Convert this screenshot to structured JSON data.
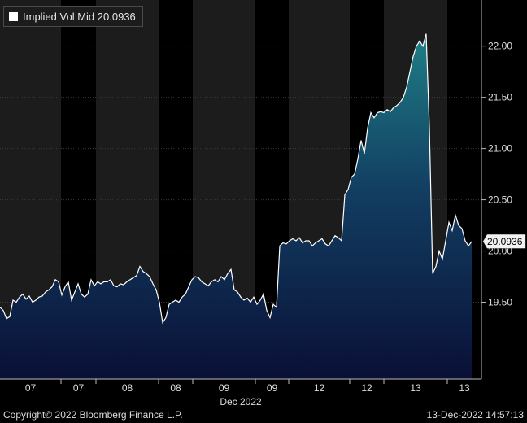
{
  "legend": {
    "label": "Implied Vol Mid",
    "value": "20.0936",
    "swatch_color": "#ffffff"
  },
  "footer": {
    "copyright": "Copyright© 2022 Bloomberg Finance L.P.",
    "timestamp": "13-Dec-2022 14:57:13"
  },
  "chart_data": {
    "type": "area",
    "series": [
      {
        "name": "Implied Vol Mid",
        "last_value": 20.0936
      }
    ],
    "x_tick_labels": [
      "07",
      "07",
      "08",
      "08",
      "09",
      "09",
      "12",
      "12",
      "13",
      "13"
    ],
    "x_month_label": "Dec 2022",
    "y_ticks": [
      19.5,
      20.0,
      20.5,
      21.0,
      21.5,
      22.0
    ],
    "y_tick_labels": [
      "19.50",
      "20.00",
      "20.50",
      "21.00",
      "21.50",
      "22.00"
    ],
    "ylim": [
      18.75,
      22.45
    ],
    "y_axis_position": "right",
    "current_value_label": "20.0936",
    "shaded_sessions": [
      [
        0,
        1
      ],
      [
        2,
        3
      ],
      [
        4,
        5
      ],
      [
        6,
        7
      ],
      [
        8,
        9
      ]
    ],
    "n_points": 146,
    "points": [
      [
        0,
        19.45
      ],
      [
        1,
        19.42
      ],
      [
        2,
        19.34
      ],
      [
        3,
        19.36
      ],
      [
        4,
        19.52
      ],
      [
        5,
        19.5
      ],
      [
        6,
        19.55
      ],
      [
        7,
        19.58
      ],
      [
        8,
        19.53
      ],
      [
        9,
        19.56
      ],
      [
        10,
        19.5
      ],
      [
        11,
        19.52
      ],
      [
        12,
        19.55
      ],
      [
        13,
        19.56
      ],
      [
        14,
        19.6
      ],
      [
        15,
        19.62
      ],
      [
        16,
        19.65
      ],
      [
        17,
        19.72
      ],
      [
        18,
        19.7
      ],
      [
        19,
        19.57
      ],
      [
        20,
        19.65
      ],
      [
        21,
        19.7
      ],
      [
        22,
        19.52
      ],
      [
        23,
        19.6
      ],
      [
        24,
        19.68
      ],
      [
        25,
        19.58
      ],
      [
        26,
        19.55
      ],
      [
        27,
        19.58
      ],
      [
        28,
        19.72
      ],
      [
        29,
        19.66
      ],
      [
        30,
        19.7
      ],
      [
        31,
        19.68
      ],
      [
        32,
        19.7
      ],
      [
        33,
        19.7
      ],
      [
        34,
        19.72
      ],
      [
        35,
        19.66
      ],
      [
        36,
        19.65
      ],
      [
        37,
        19.68
      ],
      [
        38,
        19.67
      ],
      [
        39,
        19.7
      ],
      [
        40,
        19.72
      ],
      [
        41,
        19.74
      ],
      [
        42,
        19.76
      ],
      [
        43,
        19.85
      ],
      [
        44,
        19.8
      ],
      [
        45,
        19.78
      ],
      [
        46,
        19.75
      ],
      [
        47,
        19.68
      ],
      [
        48,
        19.62
      ],
      [
        49,
        19.5
      ],
      [
        50,
        19.3
      ],
      [
        51,
        19.35
      ],
      [
        52,
        19.48
      ],
      [
        53,
        19.5
      ],
      [
        54,
        19.52
      ],
      [
        55,
        19.5
      ],
      [
        56,
        19.55
      ],
      [
        57,
        19.58
      ],
      [
        58,
        19.65
      ],
      [
        59,
        19.72
      ],
      [
        60,
        19.75
      ],
      [
        61,
        19.74
      ],
      [
        62,
        19.7
      ],
      [
        63,
        19.68
      ],
      [
        64,
        19.66
      ],
      [
        65,
        19.7
      ],
      [
        66,
        19.72
      ],
      [
        67,
        19.7
      ],
      [
        68,
        19.75
      ],
      [
        69,
        19.72
      ],
      [
        70,
        19.78
      ],
      [
        71,
        19.82
      ],
      [
        72,
        19.62
      ],
      [
        73,
        19.6
      ],
      [
        74,
        19.55
      ],
      [
        75,
        19.52
      ],
      [
        76,
        19.54
      ],
      [
        77,
        19.5
      ],
      [
        78,
        19.55
      ],
      [
        79,
        19.48
      ],
      [
        80,
        19.52
      ],
      [
        81,
        19.58
      ],
      [
        82,
        19.42
      ],
      [
        83,
        19.35
      ],
      [
        84,
        19.48
      ],
      [
        85,
        19.45
      ],
      [
        86,
        20.05
      ],
      [
        87,
        20.08
      ],
      [
        88,
        20.07
      ],
      [
        89,
        20.1
      ],
      [
        90,
        20.12
      ],
      [
        91,
        20.1
      ],
      [
        92,
        20.13
      ],
      [
        93,
        20.08
      ],
      [
        94,
        20.1
      ],
      [
        95,
        20.1
      ],
      [
        96,
        20.05
      ],
      [
        97,
        20.08
      ],
      [
        98,
        20.1
      ],
      [
        99,
        20.12
      ],
      [
        100,
        20.07
      ],
      [
        101,
        20.05
      ],
      [
        102,
        20.1
      ],
      [
        103,
        20.15
      ],
      [
        104,
        20.13
      ],
      [
        105,
        20.1
      ],
      [
        106,
        20.55
      ],
      [
        107,
        20.6
      ],
      [
        108,
        20.72
      ],
      [
        109,
        20.75
      ],
      [
        110,
        20.9
      ],
      [
        111,
        21.08
      ],
      [
        112,
        20.95
      ],
      [
        113,
        21.2
      ],
      [
        114,
        21.35
      ],
      [
        115,
        21.3
      ],
      [
        116,
        21.35
      ],
      [
        117,
        21.36
      ],
      [
        118,
        21.35
      ],
      [
        119,
        21.38
      ],
      [
        120,
        21.36
      ],
      [
        121,
        21.4
      ],
      [
        122,
        21.42
      ],
      [
        123,
        21.45
      ],
      [
        124,
        21.5
      ],
      [
        125,
        21.6
      ],
      [
        126,
        21.75
      ],
      [
        127,
        21.9
      ],
      [
        128,
        22.0
      ],
      [
        129,
        22.05
      ],
      [
        130,
        22.0
      ],
      [
        131,
        22.12
      ],
      [
        132,
        21.2
      ],
      [
        133,
        19.78
      ],
      [
        134,
        19.85
      ],
      [
        135,
        20.0
      ],
      [
        136,
        19.92
      ],
      [
        137,
        20.1
      ],
      [
        138,
        20.28
      ],
      [
        139,
        20.2
      ],
      [
        140,
        20.35
      ],
      [
        141,
        20.25
      ],
      [
        142,
        20.22
      ],
      [
        143,
        20.1
      ],
      [
        144,
        20.05
      ],
      [
        145,
        20.0936
      ]
    ]
  }
}
